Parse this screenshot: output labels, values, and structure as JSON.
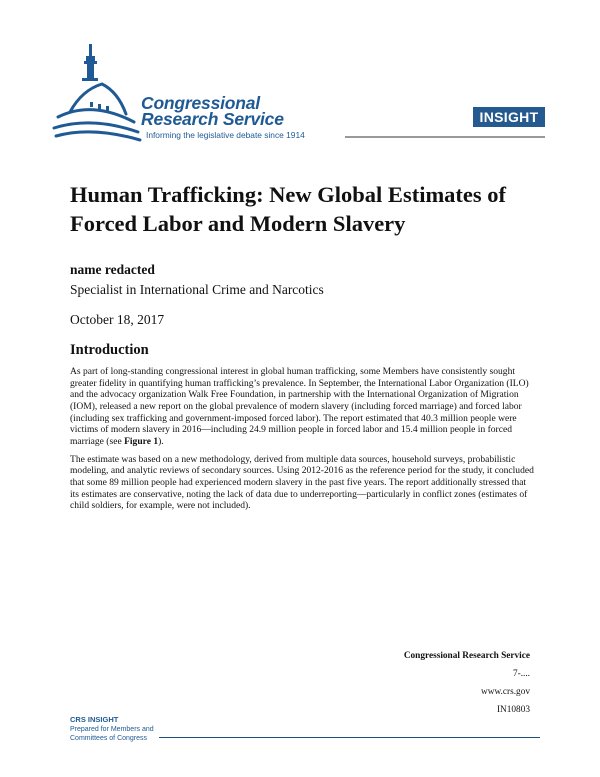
{
  "header": {
    "org_line1": "Congressional",
    "org_line2": "Research Service",
    "tagline": "Informing the legislative debate since 1914",
    "badge": "INSIGHT",
    "brand_color": "#1f5a94"
  },
  "title": "Human Trafficking: New Global Estimates of Forced Labor and Modern Slavery",
  "author": {
    "name": "name redacted",
    "role": "Specialist in International Crime and Narcotics"
  },
  "date": "October 18, 2017",
  "section": {
    "heading": "Introduction",
    "p1_before": "As part of long-standing congressional interest in global human trafficking, some Members have consistently sought greater fidelity in quantifying human trafficking’s prevalence. In September, the International Labor Organization (ILO) and the advocacy organization Walk Free Foundation, in partnership with the International Organization of Migration (IOM), released a new report on the global prevalence of modern slavery (including forced marriage) and forced labor (including sex trafficking and government-imposed forced labor). The report estimated that 40.3 million people were victims of modern slavery in 2016—including 24.9 million people in forced labor and 15.4 million people in forced marriage (see ",
    "p1_link": "Figure 1",
    "p1_after": ").",
    "p2": "The estimate was based on a new methodology, derived from multiple data sources, household surveys, probabilistic modeling, and analytic reviews of secondary sources. Using 2012-2016 as the reference period for the study, it concluded that some 89 million people had experienced modern slavery in the past five years. The report additionally stressed that its estimates are conservative, noting the lack of data due to underreporting—particularly in conflict zones (estimates of child soldiers, for example, were not included)."
  },
  "footer": {
    "org": "Congressional Research Service",
    "code": "7-....",
    "url": "www.crs.gov",
    "report_id": "IN10803",
    "series": "CRS INSIGHT",
    "prepared_line1": "Prepared for Members and",
    "prepared_line2": "Committees of Congress"
  }
}
